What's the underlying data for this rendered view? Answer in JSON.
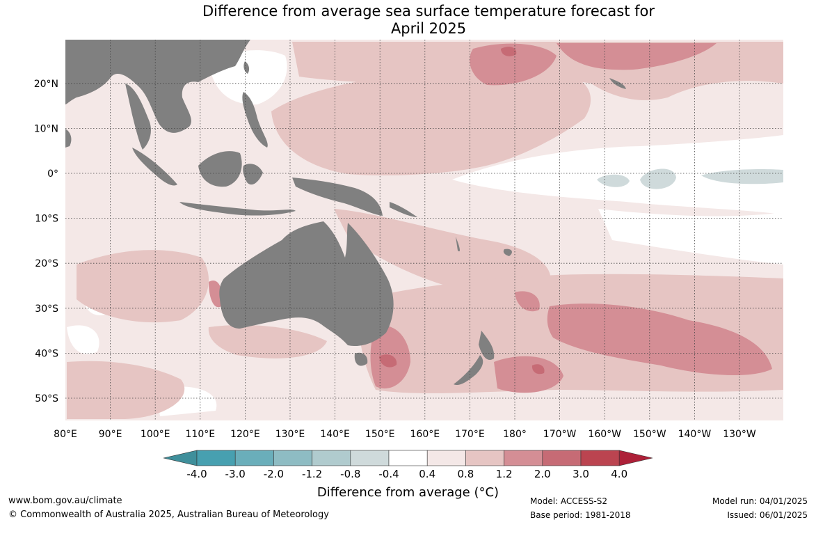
{
  "title": {
    "line1": "Difference from average sea surface temperature forecast for",
    "line2": "April 2025"
  },
  "map": {
    "type": "filled contour map",
    "variable": "sea surface temperature anomaly",
    "lon_labels": [
      "80°E",
      "90°E",
      "100°E",
      "110°E",
      "120°E",
      "130°E",
      "140°E",
      "150°E",
      "160°E",
      "170°E",
      "180°",
      "170°W",
      "160°W",
      "150°W",
      "140°W",
      "130°W"
    ],
    "lat_labels": [
      "20°N",
      "10°N",
      "0°",
      "10°S",
      "20°S",
      "30°S",
      "40°S",
      "50°S"
    ],
    "gridlines": "dotted",
    "land_color": "#808080"
  },
  "colorbar": {
    "levels": [
      "-4.0",
      "-3.0",
      "-2.0",
      "-1.2",
      "-0.8",
      "-0.4",
      "0.4",
      "0.8",
      "1.2",
      "2.0",
      "3.0",
      "4.0"
    ],
    "colors": [
      "#3f8f9b",
      "#47a0b0",
      "#6aaeba",
      "#8ebcc3",
      "#b0cbce",
      "#cfdadb",
      "#ffffff",
      "#f4e8e7",
      "#e6c5c3",
      "#d48e95",
      "#c66b75",
      "#bb4450",
      "#ad2038"
    ],
    "title": "Difference from average (°C)",
    "extend": "both"
  },
  "footer": {
    "website": "www.bom.gov.au/climate",
    "copyright": "© Commonwealth of Australia 2025, Australian Bureau of Meteorology",
    "model": "Model: ACCESS-S2",
    "base_period": "Base period: 1981-2018",
    "model_run": "Model run: 04/01/2025",
    "issued": "Issued: 06/01/2025"
  }
}
